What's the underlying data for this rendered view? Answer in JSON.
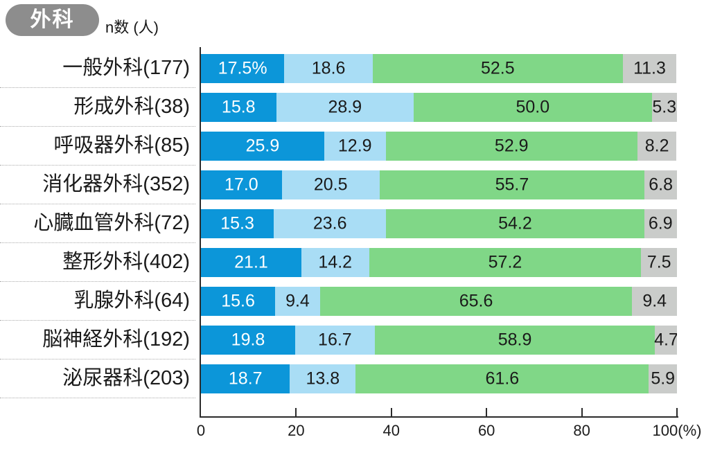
{
  "header": {
    "badge": "外科",
    "n_label": "n数 (人)"
  },
  "colors": {
    "badge_bg": "#8d8d8d",
    "badge_text": "#ffffff",
    "axis": "#2b2b2b",
    "row_separator": "#aaaaaa",
    "category_text": "#1a1a1a"
  },
  "chart_data": {
    "type": "bar",
    "variant": "horizontal-stacked",
    "title": "外科",
    "n_unit_label": "n数 (人)",
    "xlim": [
      0,
      100
    ],
    "unit": "%",
    "grid": "dotted row separators in label column only",
    "legend": "none",
    "segment_colors": [
      "#0c96d9",
      "#a9ddf5",
      "#80d787",
      "#caccca"
    ],
    "segment_text_colors": [
      "#ffffff",
      "#1a1a1a",
      "#1a1a1a",
      "#1a1a1a"
    ],
    "x_ticks": [
      {
        "value": 0,
        "label": "0"
      },
      {
        "value": 20,
        "label": "20"
      },
      {
        "value": 40,
        "label": "40"
      },
      {
        "value": 60,
        "label": "60"
      },
      {
        "value": 80,
        "label": "80"
      },
      {
        "value": 100,
        "label": "100(%)"
      }
    ],
    "categories": [
      "一般外科(177)",
      "形成外科(38)",
      "呼吸器外科(85)",
      "消化器外科(352)",
      "心臓血管外科(72)",
      "整形外科(402)",
      "乳腺外科(64)",
      "脳神経外科(192)",
      "泌尿器科(203)"
    ],
    "rows": [
      {
        "label": "一般外科(177)",
        "values": [
          17.5,
          18.6,
          52.5,
          11.3
        ],
        "value_labels": [
          "17.5%",
          "18.6",
          "52.5",
          "11.3"
        ]
      },
      {
        "label": "形成外科(38)",
        "values": [
          15.8,
          28.9,
          50.0,
          5.3
        ],
        "value_labels": [
          "15.8",
          "28.9",
          "50.0",
          "5.3"
        ]
      },
      {
        "label": "呼吸器外科(85)",
        "values": [
          25.9,
          12.9,
          52.9,
          8.2
        ],
        "value_labels": [
          "25.9",
          "12.9",
          "52.9",
          "8.2"
        ]
      },
      {
        "label": "消化器外科(352)",
        "values": [
          17.0,
          20.5,
          55.7,
          6.8
        ],
        "value_labels": [
          "17.0",
          "20.5",
          "55.7",
          "6.8"
        ]
      },
      {
        "label": "心臓血管外科(72)",
        "values": [
          15.3,
          23.6,
          54.2,
          6.9
        ],
        "value_labels": [
          "15.3",
          "23.6",
          "54.2",
          "6.9"
        ]
      },
      {
        "label": "整形外科(402)",
        "values": [
          21.1,
          14.2,
          57.2,
          7.5
        ],
        "value_labels": [
          "21.1",
          "14.2",
          "57.2",
          "7.5"
        ]
      },
      {
        "label": "乳腺外科(64)",
        "values": [
          15.6,
          9.4,
          65.6,
          9.4
        ],
        "value_labels": [
          "15.6",
          "9.4",
          "65.6",
          "9.4"
        ]
      },
      {
        "label": "脳神経外科(192)",
        "values": [
          19.8,
          16.7,
          58.9,
          4.7
        ],
        "value_labels": [
          "19.8",
          "16.7",
          "58.9",
          "4.7"
        ]
      },
      {
        "label": "泌尿器科(203)",
        "values": [
          18.7,
          13.8,
          61.6,
          5.9
        ],
        "value_labels": [
          "18.7",
          "13.8",
          "61.6",
          "5.9"
        ]
      }
    ]
  }
}
